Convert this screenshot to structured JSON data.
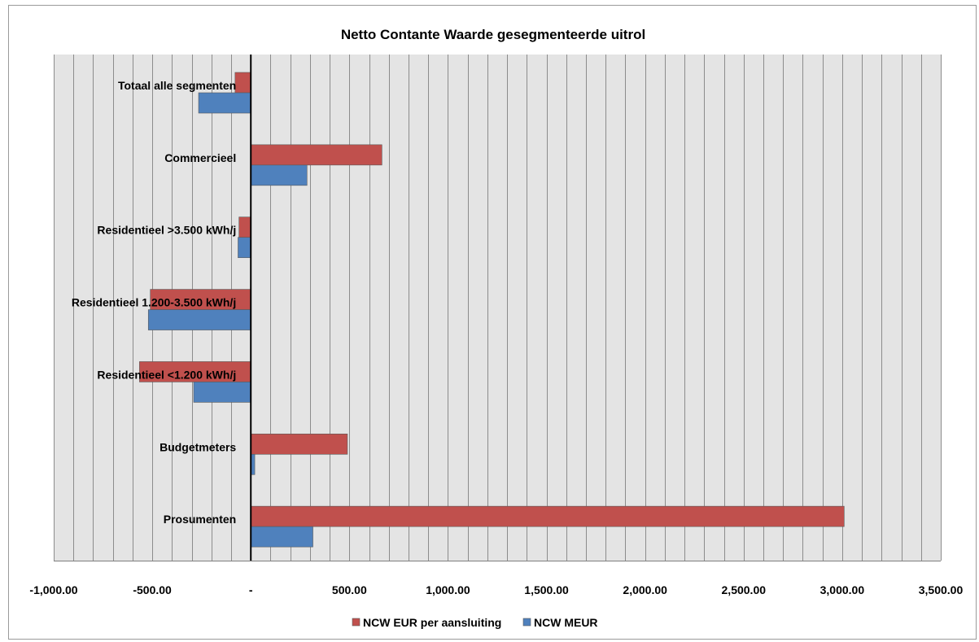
{
  "chart_data": {
    "type": "bar",
    "orientation": "horizontal",
    "title": "Netto Contante Waarde gesegmenteerde uitrol",
    "xlabel": "",
    "ylabel": "",
    "categories": [
      "Totaal alle segmenten",
      "Commercieel",
      "Residentieel >3.500 kWh/j",
      "Residentieel 1.200-3.500 kWh/j",
      "Residentieel <1.200 kWh/j",
      "Budgetmeters",
      "Prosumenten"
    ],
    "series": [
      {
        "name": "NCW EUR per aansluiting",
        "color": "#c0504d",
        "values": [
          -80,
          665,
          -60,
          -510,
          -565,
          490,
          3010
        ]
      },
      {
        "name": "NCW MEUR",
        "color": "#4f81bd",
        "values": [
          -265,
          285,
          -65,
          -520,
          -290,
          20,
          315
        ]
      }
    ],
    "xlim": [
      -1000,
      3500
    ],
    "x_ticks": [
      -1000,
      -500,
      0,
      500,
      1000,
      1500,
      2000,
      2500,
      3000,
      3500
    ],
    "x_tick_labels": [
      "-1,000.00",
      "-500.00",
      "-",
      "500.00",
      "1,000.00",
      "1,500.00",
      "2,000.00",
      "2,500.00",
      "3,000.00",
      "3,500.00"
    ],
    "minor_grid_step": 100,
    "grid": true,
    "legend_position": "bottom",
    "colors": {
      "plot_background": "#e4e4e4",
      "grid": "#8c8c8c",
      "axis": "#000000"
    }
  }
}
